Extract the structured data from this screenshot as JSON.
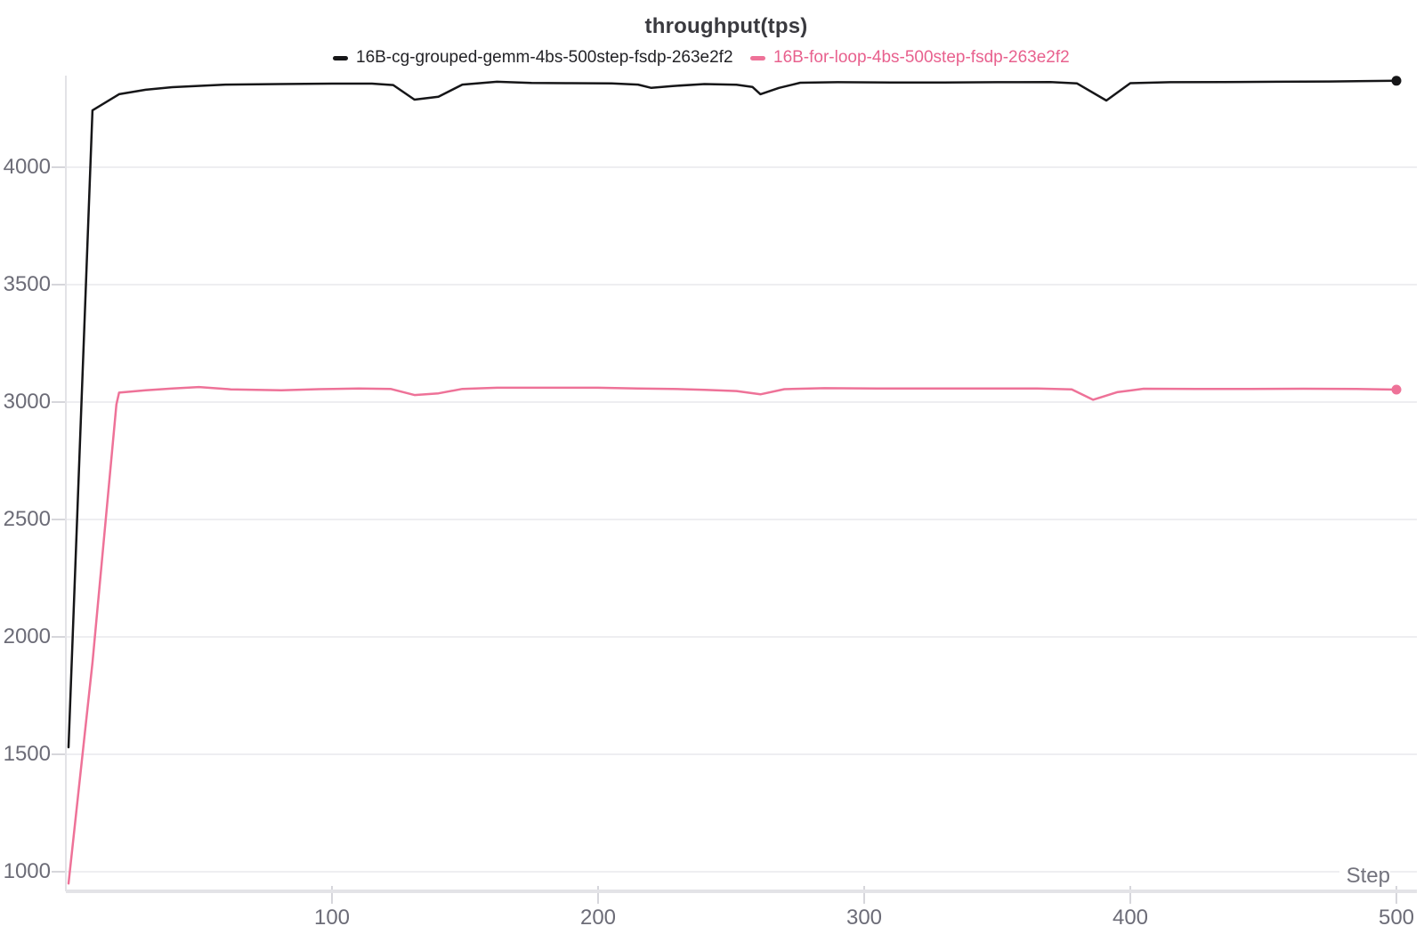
{
  "chart_data": {
    "type": "line",
    "title": "throughput(tps)",
    "xlabel": "Step",
    "ylabel": "",
    "x_range": [
      0,
      500
    ],
    "y_range": [
      900,
      4400
    ],
    "x_ticks": [
      100,
      200,
      300,
      400,
      500
    ],
    "y_ticks": [
      1000,
      1500,
      2000,
      2500,
      3000,
      3500,
      4000
    ],
    "grid": "horizontal",
    "legend_position": "top",
    "series": [
      {
        "name": "16B-cg-grouped-gemm-4bs-500step-fsdp-263e2f2",
        "color": "#161618",
        "label_color": "#232327",
        "end_dot": true,
        "points": [
          [
            1,
            1530
          ],
          [
            10,
            4242
          ],
          [
            20,
            4311
          ],
          [
            30,
            4330
          ],
          [
            40,
            4341
          ],
          [
            60,
            4352
          ],
          [
            80,
            4354
          ],
          [
            100,
            4356
          ],
          [
            115,
            4356
          ],
          [
            123,
            4350
          ],
          [
            131,
            4288
          ],
          [
            140,
            4300
          ],
          [
            149,
            4352
          ],
          [
            162,
            4364
          ],
          [
            175,
            4359
          ],
          [
            190,
            4358
          ],
          [
            205,
            4357
          ],
          [
            215,
            4352
          ],
          [
            220,
            4338
          ],
          [
            228,
            4346
          ],
          [
            240,
            4354
          ],
          [
            252,
            4351
          ],
          [
            258,
            4342
          ],
          [
            261,
            4311
          ],
          [
            268,
            4338
          ],
          [
            276,
            4360
          ],
          [
            290,
            4362
          ],
          [
            310,
            4361
          ],
          [
            330,
            4361
          ],
          [
            350,
            4362
          ],
          [
            370,
            4363
          ],
          [
            380,
            4357
          ],
          [
            391,
            4284
          ],
          [
            400,
            4358
          ],
          [
            415,
            4362
          ],
          [
            435,
            4363
          ],
          [
            455,
            4364
          ],
          [
            475,
            4365
          ],
          [
            500,
            4368
          ]
        ]
      },
      {
        "name": "16B-for-loop-4bs-500step-fsdp-263e2f2",
        "color": "#ee7298",
        "label_color": "#e8618e",
        "end_dot": true,
        "points": [
          [
            1,
            950
          ],
          [
            10,
            1890
          ],
          [
            19,
            2990
          ],
          [
            20,
            3040
          ],
          [
            30,
            3050
          ],
          [
            40,
            3058
          ],
          [
            50,
            3064
          ],
          [
            62,
            3054
          ],
          [
            81,
            3050
          ],
          [
            95,
            3055
          ],
          [
            110,
            3058
          ],
          [
            122,
            3056
          ],
          [
            131,
            3030
          ],
          [
            140,
            3037
          ],
          [
            149,
            3056
          ],
          [
            162,
            3061
          ],
          [
            180,
            3061
          ],
          [
            200,
            3061
          ],
          [
            215,
            3058
          ],
          [
            228,
            3056
          ],
          [
            240,
            3052
          ],
          [
            252,
            3047
          ],
          [
            261,
            3033
          ],
          [
            270,
            3055
          ],
          [
            285,
            3059
          ],
          [
            305,
            3058
          ],
          [
            325,
            3058
          ],
          [
            345,
            3058
          ],
          [
            365,
            3058
          ],
          [
            378,
            3054
          ],
          [
            386,
            3010
          ],
          [
            395,
            3042
          ],
          [
            405,
            3057
          ],
          [
            425,
            3056
          ],
          [
            445,
            3056
          ],
          [
            465,
            3057
          ],
          [
            485,
            3056
          ],
          [
            500,
            3053
          ]
        ]
      }
    ]
  },
  "colors": {
    "background": "#ffffff",
    "grid": "#eeeef1",
    "axis_line": "#e3e3e7",
    "tick_mark": "#d6d6db",
    "tick_label": "#6c6c77",
    "title": "#3a3a3f",
    "x_axis_title": "#73737d"
  }
}
